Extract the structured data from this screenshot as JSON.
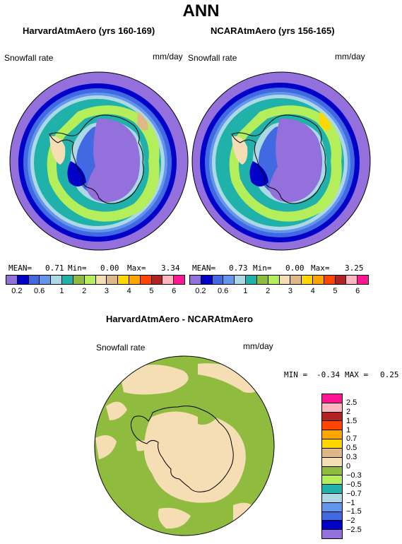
{
  "figure": {
    "title": "ANN"
  },
  "panels": [
    {
      "title": "HarvardAtmAero (yrs 160-169)",
      "variable": "Snowfall rate",
      "units": "mm/day",
      "stats": {
        "mean_label": "MEAN=",
        "mean": "0.71",
        "min_label": "Min=",
        "min": "0.00",
        "max_label": "Max=",
        "max": "3.34"
      }
    },
    {
      "title": "NCARAtmAero (yrs 156-165)",
      "variable": "Snowfall rate",
      "units": "mm/day",
      "stats": {
        "mean_label": "MEAN=",
        "mean": "0.73",
        "min_label": "Min=",
        "min": "0.00",
        "max_label": "Max=",
        "max": "3.25"
      }
    }
  ],
  "top_colorbar": {
    "colors": [
      "#9370db",
      "#0000c8",
      "#4169e1",
      "#6495ed",
      "#add8e6",
      "#20b2aa",
      "#8fbc3f",
      "#b4ee5a",
      "#f5deb3",
      "#deb887",
      "#ffd700",
      "#ffa500",
      "#ff4500",
      "#b22222",
      "#ffb6c1",
      "#ff1493"
    ],
    "labels": [
      "0.2",
      "0.6",
      "1",
      "2",
      "3",
      "4",
      "5",
      "6"
    ]
  },
  "diff_panel": {
    "title": "HarvardAtmAero - NCARAtmAero",
    "variable": "Snowfall rate",
    "units": "mm/day",
    "min_label": "MIN =",
    "min": "-0.34",
    "max_label": "MAX =",
    "max": "0.25"
  },
  "diff_colorbar": {
    "colors": [
      "#ff1493",
      "#ffb6c1",
      "#b22222",
      "#ff4500",
      "#ffa500",
      "#ffd700",
      "#deb887",
      "#f5deb3",
      "#8fbc3f",
      "#b4ee5a",
      "#20b2aa",
      "#add8e6",
      "#6495ed",
      "#4169e1",
      "#0000c8",
      "#9370db"
    ],
    "labels": [
      "2.5",
      "2",
      "1.5",
      "1",
      "0.7",
      "0.5",
      "0.3",
      "0",
      "−0.3",
      "−0.5",
      "−0.7",
      "−1",
      "−1.5",
      "−2",
      "−2.5"
    ]
  }
}
